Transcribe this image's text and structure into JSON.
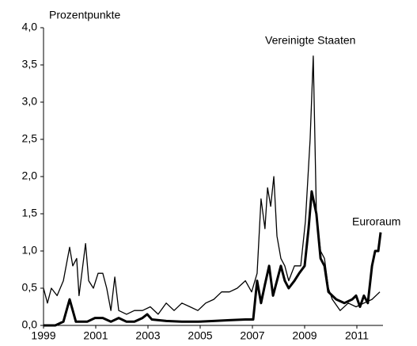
{
  "chart_data": {
    "type": "line",
    "y_label": "Prozentpunkte",
    "xlim": [
      1999,
      2012
    ],
    "xticks": [
      1999,
      2001,
      2003,
      2005,
      2007,
      2009,
      2011
    ],
    "ylim": [
      0,
      4
    ],
    "yticks": [
      {
        "value": 0,
        "label": "0,0"
      },
      {
        "value": 0.5,
        "label": "0,5"
      },
      {
        "value": 1,
        "label": "1,0"
      },
      {
        "value": 1.5,
        "label": "1,5"
      },
      {
        "value": 2,
        "label": "2,0"
      },
      {
        "value": 2.5,
        "label": "2,5"
      },
      {
        "value": 3,
        "label": "3,0"
      },
      {
        "value": 3.5,
        "label": "3,5"
      },
      {
        "value": 4,
        "label": "4,0"
      }
    ],
    "grid": false,
    "series": [
      {
        "name": "Vereinigte Staaten",
        "color": "#000000",
        "width": 1.3,
        "x": [
          1999.0,
          1999.15,
          1999.3,
          1999.52,
          1999.76,
          2000.0,
          2000.12,
          2000.27,
          2000.36,
          2000.61,
          2000.73,
          2000.91,
          2001.09,
          2001.27,
          2001.42,
          2001.58,
          2001.73,
          2001.88,
          2002.18,
          2002.48,
          2002.79,
          2003.09,
          2003.39,
          2003.7,
          2004.0,
          2004.3,
          2004.61,
          2004.91,
          2005.21,
          2005.52,
          2005.82,
          2006.12,
          2006.42,
          2006.73,
          2006.97,
          2007.18,
          2007.33,
          2007.48,
          2007.58,
          2007.7,
          2007.82,
          2007.94,
          2008.09,
          2008.24,
          2008.39,
          2008.61,
          2008.85,
          2009.03,
          2009.21,
          2009.33,
          2009.45,
          2009.61,
          2009.76,
          2009.91,
          2010.06,
          2010.36,
          2010.67,
          2010.97,
          2011.27,
          2011.58,
          2011.88
        ],
        "values": [
          0.5,
          0.3,
          0.5,
          0.4,
          0.6,
          1.05,
          0.8,
          0.9,
          0.4,
          1.1,
          0.6,
          0.5,
          0.7,
          0.7,
          0.5,
          0.2,
          0.65,
          0.2,
          0.15,
          0.2,
          0.2,
          0.25,
          0.15,
          0.3,
          0.2,
          0.3,
          0.25,
          0.2,
          0.3,
          0.35,
          0.45,
          0.45,
          0.5,
          0.6,
          0.45,
          0.7,
          1.7,
          1.3,
          1.85,
          1.6,
          2.0,
          1.2,
          0.9,
          0.8,
          0.6,
          0.8,
          0.8,
          1.4,
          2.5,
          3.62,
          1.5,
          1.0,
          0.9,
          0.5,
          0.35,
          0.2,
          0.3,
          0.25,
          0.3,
          0.35,
          0.45
        ]
      },
      {
        "name": "Euroraum",
        "color": "#000000",
        "width": 3,
        "x": [
          1999.0,
          1999.45,
          1999.76,
          2000.0,
          2000.12,
          2000.24,
          2000.67,
          2000.97,
          2001.27,
          2001.58,
          2001.88,
          2002.18,
          2002.48,
          2002.79,
          2002.97,
          2003.15,
          2003.7,
          2004.3,
          2004.91,
          2005.52,
          2006.12,
          2006.73,
          2007.03,
          2007.18,
          2007.33,
          2007.48,
          2007.64,
          2007.79,
          2007.94,
          2008.09,
          2008.24,
          2008.39,
          2008.61,
          2008.79,
          2009.0,
          2009.15,
          2009.27,
          2009.45,
          2009.61,
          2009.76,
          2009.91,
          2010.21,
          2010.52,
          2010.82,
          2010.97,
          2011.12,
          2011.27,
          2011.42,
          2011.58,
          2011.7,
          2011.82,
          2011.91
        ],
        "values": [
          0.0,
          0.0,
          0.05,
          0.35,
          0.2,
          0.05,
          0.05,
          0.1,
          0.1,
          0.05,
          0.1,
          0.05,
          0.05,
          0.1,
          0.15,
          0.08,
          0.06,
          0.05,
          0.05,
          0.06,
          0.07,
          0.08,
          0.08,
          0.6,
          0.3,
          0.55,
          0.8,
          0.4,
          0.6,
          0.8,
          0.6,
          0.5,
          0.6,
          0.7,
          0.8,
          1.3,
          1.8,
          1.5,
          0.9,
          0.8,
          0.45,
          0.35,
          0.3,
          0.35,
          0.4,
          0.25,
          0.4,
          0.3,
          0.8,
          1.0,
          1.0,
          1.25
        ]
      }
    ]
  }
}
